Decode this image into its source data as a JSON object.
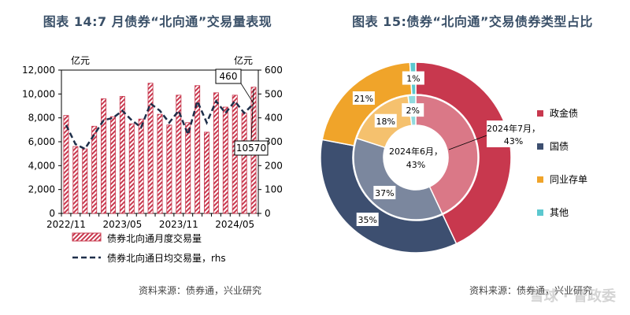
{
  "left": {
    "title": "图表 14:7 月债券“北向通”交易量表现",
    "unit_left": "亿元",
    "unit_right": "亿元",
    "source": "资料来源：债券通，兴业研究",
    "callouts": {
      "daily_latest": "460",
      "monthly_latest": "10570"
    }
  },
  "right": {
    "title": "图表 15:债券“北向通”交易债券类型占比",
    "source": "资料来源：债券通，兴业研究",
    "watermark": "雪球 · 督政委",
    "inner_label": "2024年6月，\n43%",
    "outer_label": "2024年7月，\n43%"
  },
  "chart_data": [
    {
      "type": "bar",
      "title": "",
      "xlabel": "",
      "ylabel": "亿元",
      "ylim": [
        0,
        12000
      ],
      "y2lim": [
        0,
        600
      ],
      "y_ticks": [
        "0",
        "2,000",
        "4,000",
        "6,000",
        "8,000",
        "10,000",
        "12,000"
      ],
      "y2_ticks": [
        "0",
        "100",
        "200",
        "300",
        "400",
        "500",
        "600"
      ],
      "x_tick_labels": [
        "2022/11",
        "2023/05",
        "2023/11",
        "2024/05"
      ],
      "categories": [
        "2022/11",
        "2022/12",
        "2023/01",
        "2023/02",
        "2023/03",
        "2023/04",
        "2023/05",
        "2023/06",
        "2023/07",
        "2023/08",
        "2023/09",
        "2023/10",
        "2023/11",
        "2023/12",
        "2024/01",
        "2024/02",
        "2024/03",
        "2024/04",
        "2024/05",
        "2024/06",
        "2024/07"
      ],
      "series": [
        {
          "name": "债券北向通月度交易量",
          "kind": "bar",
          "axis": "left",
          "values": [
            8200,
            5600,
            5400,
            7300,
            9600,
            8100,
            9800,
            7500,
            7900,
            10900,
            8300,
            7400,
            9900,
            7600,
            10700,
            6800,
            10100,
            8900,
            9900,
            8400,
            10570
          ]
        },
        {
          "name": "债券北向通日均交易量，rhs",
          "kind": "line",
          "axis": "right",
          "values": [
            370,
            290,
            270,
            330,
            390,
            400,
            430,
            390,
            360,
            460,
            430,
            380,
            430,
            330,
            470,
            380,
            470,
            420,
            470,
            420,
            460
          ]
        }
      ]
    },
    {
      "type": "pie",
      "title": "",
      "legend": [
        "政金债",
        "国债",
        "同业存单",
        "其他"
      ],
      "colors": [
        "#c8384e",
        "#3d4f70",
        "#f0a42a",
        "#5cc8cf"
      ],
      "rings": [
        {
          "name": "2024年7月",
          "ring": "outer",
          "values": [
            43,
            35,
            21,
            1
          ]
        },
        {
          "name": "2024年6月",
          "ring": "inner",
          "values": [
            43,
            37,
            18,
            2
          ]
        }
      ]
    }
  ]
}
